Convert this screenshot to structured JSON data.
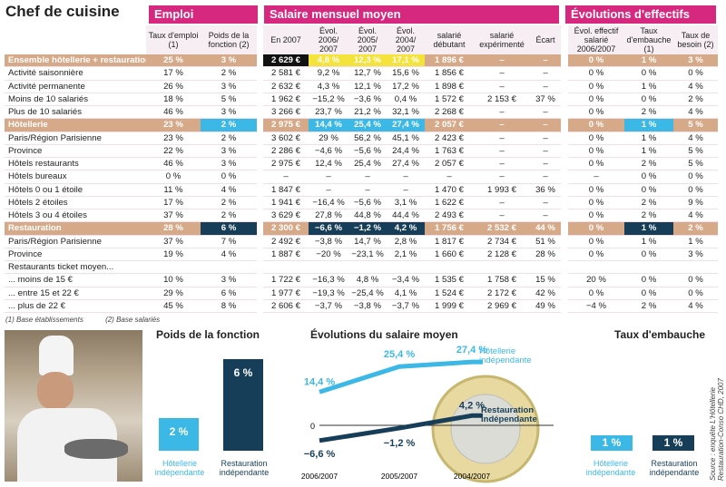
{
  "title": "Chef de cuisine",
  "groups": {
    "emploi": "Emploi",
    "salaire": "Salaire mensuel moyen",
    "evol": "Évolutions d'effectifs"
  },
  "columns": [
    "Taux d'emploi (1)",
    "Poids de la fonction (2)",
    "En 2007",
    "Évol. 2006/ 2007",
    "Évol. 2005/ 2007",
    "Évol. 2004/ 2007",
    "salarié débutant",
    "salarié expérimenté",
    "Écart",
    "Évol. effectif salarié 2006/2007",
    "Taux d'embauche (1)",
    "Taux de besoin (2)"
  ],
  "rows": [
    {
      "type": "sec",
      "cells": [
        "Ensemble hôtellerie + restauration",
        "25 %",
        "3 %",
        "2 629 €",
        "4,8 %",
        "12,3 %",
        "17,1 %",
        "1 896 €",
        "–",
        "–",
        "0 %",
        "1 %",
        "3 %"
      ]
    },
    {
      "type": "row",
      "cells": [
        "Activité saisonnière",
        "17 %",
        "2 %",
        "2 581 €",
        "9,2 %",
        "12,7 %",
        "15,6 %",
        "1 856 €",
        "–",
        "–",
        "0 %",
        "0 %",
        "0 %"
      ]
    },
    {
      "type": "row",
      "cells": [
        "Activité permanente",
        "26 %",
        "3 %",
        "2 632 €",
        "4,3 %",
        "12,1 %",
        "17,2 %",
        "1 898 €",
        "–",
        "–",
        "0 %",
        "1 %",
        "4 %"
      ]
    },
    {
      "type": "row",
      "cells": [
        "Moins de 10 salariés",
        "18 %",
        "5 %",
        "1 962 €",
        "−15,2 %",
        "−3,6 %",
        "0,4 %",
        "1 572 €",
        "2 153 €",
        "37 %",
        "0 %",
        "0 %",
        "2 %"
      ]
    },
    {
      "type": "row",
      "cells": [
        "Plus de 10 salariés",
        "46 %",
        "3 %",
        "3 266 €",
        "23,7 %",
        "21,2 %",
        "32,1 %",
        "2 268 €",
        "–",
        "–",
        "0 %",
        "2 %",
        "4 %"
      ]
    },
    {
      "type": "sec",
      "cells": [
        "Hôtellerie",
        "23 %",
        "2 %",
        "2 975 €",
        "14,4 %",
        "25,4 %",
        "27,4 %",
        "2 057 €",
        "–",
        "–",
        "0 %",
        "1 %",
        "5 %"
      ]
    },
    {
      "type": "row",
      "cells": [
        "Paris/Région Parisienne",
        "23 %",
        "2 %",
        "3 602 €",
        "29 %",
        "56,2 %",
        "45,1 %",
        "2 423 €",
        "–",
        "–",
        "0 %",
        "1 %",
        "4 %"
      ]
    },
    {
      "type": "row",
      "cells": [
        "Province",
        "22 %",
        "3 %",
        "2 286 €",
        "−4,6 %",
        "−5,6 %",
        "24,4 %",
        "1 763 €",
        "–",
        "–",
        "0 %",
        "1 %",
        "5 %"
      ]
    },
    {
      "type": "row",
      "cells": [
        "Hôtels restaurants",
        "46 %",
        "3 %",
        "2 975 €",
        "12,4 %",
        "25,4 %",
        "27,4 %",
        "2 057 €",
        "–",
        "–",
        "0 %",
        "2 %",
        "5 %"
      ]
    },
    {
      "type": "row",
      "cells": [
        "Hôtels bureaux",
        "0 %",
        "0 %",
        "–",
        "–",
        "–",
        "–",
        "–",
        "–",
        "–",
        "–",
        "0 %",
        "0 %"
      ]
    },
    {
      "type": "row",
      "cells": [
        "Hôtels 0 ou 1 étoile",
        "11 %",
        "4 %",
        "1 847 €",
        "–",
        "–",
        "–",
        "1 470 €",
        "1 993 €",
        "36 %",
        "0 %",
        "0 %",
        "0 %"
      ]
    },
    {
      "type": "row",
      "cells": [
        "Hôtels 2 étoiles",
        "17 %",
        "2 %",
        "1 941 €",
        "−16,4 %",
        "−5,6 %",
        "3,1 %",
        "1 622 €",
        "–",
        "–",
        "0 %",
        "2 %",
        "9 %"
      ]
    },
    {
      "type": "row",
      "cells": [
        "Hôtels 3 ou 4 étoiles",
        "37 %",
        "2 %",
        "3 629 €",
        "27,8 %",
        "44,8 %",
        "44,4 %",
        "2 493 €",
        "–",
        "–",
        "0 %",
        "2 %",
        "4 %"
      ]
    },
    {
      "type": "sec",
      "cells": [
        "Restauration",
        "28 %",
        "6 %",
        "2 300 €",
        "−6,6 %",
        "−1,2 %",
        "4,2 %",
        "1 756 €",
        "2 532 €",
        "44 %",
        "0 %",
        "1 %",
        "2 %"
      ]
    },
    {
      "type": "row",
      "cells": [
        "Paris/Région Parisienne",
        "37 %",
        "7 %",
        "2 492 €",
        "−3,8 %",
        "14,7 %",
        "2,8 %",
        "1 817 €",
        "2 734 €",
        "51 %",
        "0 %",
        "1 %",
        "1 %"
      ]
    },
    {
      "type": "row",
      "cells": [
        "Province",
        "19 %",
        "4 %",
        "1 887 €",
        "−20 %",
        "−23,1 %",
        "2,1 %",
        "1 660 €",
        "2 128 €",
        "28 %",
        "0 %",
        "0 %",
        "3 %"
      ]
    },
    {
      "type": "row",
      "cells": [
        "Restaurants ticket moyen...",
        "",
        "",
        "",
        "",
        "",
        "",
        "",
        "",
        "",
        "",
        "",
        ""
      ]
    },
    {
      "type": "row",
      "cells": [
        "... moins de 15 €",
        "10 %",
        "3 %",
        "1 722 €",
        "−16,3 %",
        "4,8 %",
        "−3,4 %",
        "1 535 €",
        "1 758 €",
        "15 %",
        "20 %",
        "0 %",
        "0 %"
      ]
    },
    {
      "type": "row",
      "cells": [
        "... entre 15 et 22 €",
        "29 %",
        "6 %",
        "1 977 €",
        "−19,3 %",
        "−25,4 %",
        "4,1 %",
        "1 524 €",
        "2 172 €",
        "42 %",
        "0 %",
        "0 %",
        "0 %"
      ]
    },
    {
      "type": "row",
      "cells": [
        "... plus de 22 €",
        "45 %",
        "8 %",
        "2 606 €",
        "−3,7 %",
        "−3,8 %",
        "−3,7 %",
        "1 999 €",
        "2 969 €",
        "49 %",
        "−4 %",
        "2 %",
        "4 %"
      ]
    }
  ],
  "footnotes": [
    "(1) Base établissements",
    "(2) Base salariés"
  ],
  "poids": {
    "title": "Poids de la fonction",
    "bar1_value": "2 %",
    "bar1_label": "Hôtellerie indépendante",
    "bar2_value": "6 %",
    "bar2_label": "Restauration indépendante"
  },
  "salaire_chart": {
    "title": "Évolutions du salaire moyen",
    "x_labels": [
      "2006/2007",
      "2005/2007",
      "2004/2007"
    ],
    "zero_label": "0",
    "hotel_values": [
      "14,4 %",
      "25,4 %",
      "27,4 %"
    ],
    "resto_values": [
      "−6,6 %",
      "−1,2 %",
      "4,2 %"
    ],
    "hotel_label": "Hôtellerie indépendante",
    "resto_label": "Restauration indépendante",
    "colors": {
      "hotel": "#3bb8e6",
      "resto": "#173e58"
    }
  },
  "chart_data": {
    "type": "line",
    "title": "Évolutions du salaire moyen",
    "x": [
      "2006/2007",
      "2005/2007",
      "2004/2007"
    ],
    "series": [
      {
        "name": "Hôtellerie indépendante",
        "values": [
          14.4,
          25.4,
          27.4
        ]
      },
      {
        "name": "Restauration indépendante",
        "values": [
          -6.6,
          -1.2,
          4.2
        ]
      }
    ]
  },
  "embauche": {
    "title": "Taux d'embauche",
    "v1": "1 %",
    "l1": "Hôtellerie indépendante",
    "v2": "1 %",
    "l2": "Restauration indépendante"
  },
  "source": "Source : enquête L'Hôtellerie Restauration-Conso CHD, 2007"
}
